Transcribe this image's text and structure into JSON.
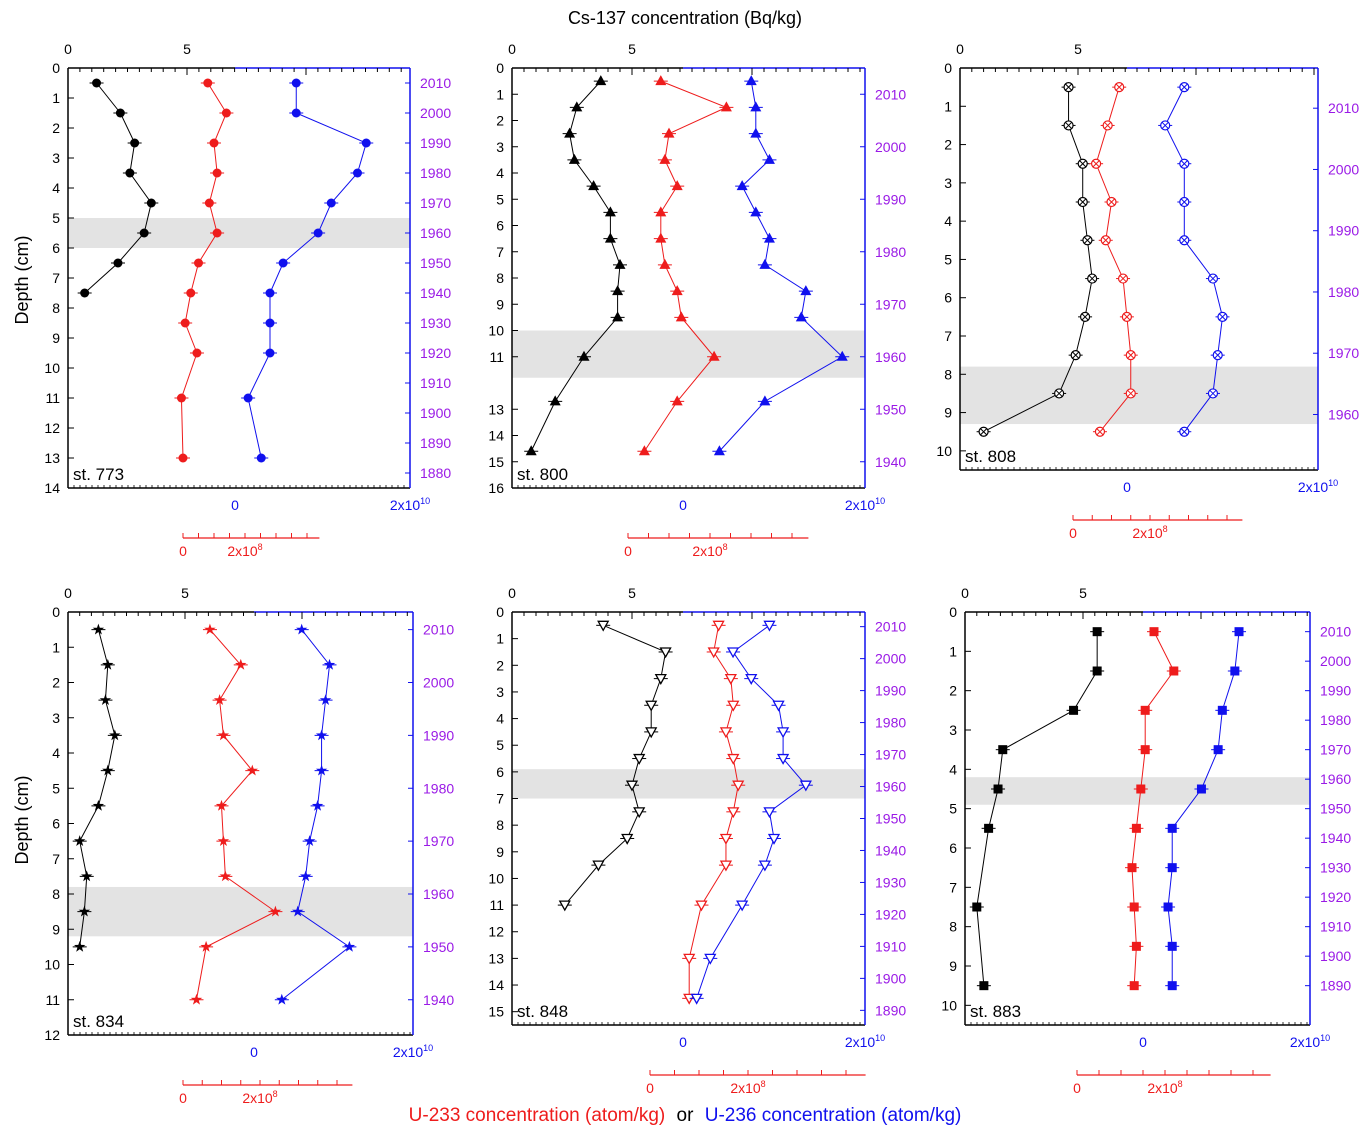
{
  "labels": {
    "cs_axis_title": "Cs-137 concentration (Bq/kg)",
    "depth_axis_title": "Depth (cm)",
    "u233_axis_title": "U-233 concentration (atom/kg)",
    "or_word": "or",
    "u236_axis_title": "U-236 concentration (atom/kg)",
    "u236_tick_high": "2x10",
    "u236_tick_high_exp": "10",
    "u233_tick_mid": "2x10",
    "u233_tick_mid_exp": "8"
  },
  "colors": {
    "cs": "#000000",
    "u233": "#ee1c1c",
    "u236": "#1010ee",
    "year": "#9a1ae6",
    "band": "#e3e3e3"
  },
  "chart_data": [
    {
      "type": "scatter",
      "station": "st. 773",
      "marker": "circle",
      "depth_range": [
        0,
        14
      ],
      "depth_ticks": [
        0,
        1,
        2,
        3,
        4,
        5,
        6,
        7,
        8,
        9,
        10,
        11,
        12,
        13,
        14
      ],
      "shaded_band": [
        5,
        6
      ],
      "cs_range": [
        0,
        15
      ],
      "years": [
        2010,
        2000,
        1990,
        1980,
        1970,
        1960,
        1950,
        1940,
        1930,
        1920,
        1910,
        1900,
        1890,
        1880
      ],
      "year_first_depth": 0.5,
      "year_step_depth": 1,
      "cs": {
        "depth": [
          0.5,
          1.5,
          2.5,
          3.5,
          4.5,
          5.5,
          6.5,
          7.5
        ],
        "values": [
          1.2,
          2.2,
          2.8,
          2.6,
          3.5,
          3.2,
          2.1,
          0.7
        ]
      },
      "u233": {
        "depth": [
          0.5,
          1.5,
          2.5,
          3.5,
          4.5,
          5.5,
          6.5,
          7.5,
          8.5,
          9.5,
          11,
          13
        ],
        "values": [
          80000000.0,
          140000000.0,
          100000000.0,
          110000000.0,
          85000000.0,
          110000000.0,
          50000000.0,
          25000000.0,
          7000000.0,
          45000000.0,
          -5000000.0,
          0.0
        ]
      },
      "u236": {
        "depth": [
          0.5,
          1.5,
          2.5,
          3.5,
          4.5,
          5.5,
          6.5,
          7.5,
          8.5,
          9.5,
          11,
          13
        ],
        "values": [
          7000000000.0,
          7000000000.0,
          15000000000.0,
          14000000000.0,
          11000000000.0,
          9500000000.0,
          5500000000.0,
          4000000000.0,
          4000000000.0,
          4000000000.0,
          1500000000.0,
          3000000000.0
        ]
      }
    },
    {
      "type": "scatter",
      "station": "st. 800",
      "marker": "triangle-up",
      "depth_range": [
        0,
        16
      ],
      "depth_ticks": [
        0,
        1,
        2,
        3,
        4,
        5,
        6,
        7,
        8,
        9,
        10,
        11,
        13,
        14,
        15,
        16
      ],
      "shaded_band": [
        10,
        11.8
      ],
      "cs_range": [
        0,
        15
      ],
      "years": [
        2010,
        2000,
        1990,
        1980,
        1970,
        1960,
        1950,
        1940
      ],
      "year_first_depth": 1,
      "year_step_depth": 2,
      "cs": {
        "depth": [
          0.5,
          1.5,
          2.5,
          3.5,
          4.5,
          5.5,
          6.5,
          7.5,
          8.5,
          9.5,
          11,
          12.7,
          14.6
        ],
        "values": [
          3.7,
          2.7,
          2.4,
          2.6,
          3.4,
          4.1,
          4.1,
          4.5,
          4.4,
          4.4,
          3.0,
          1.8,
          0.8
        ]
      },
      "u233": {
        "depth": [
          0.5,
          1.5,
          2.5,
          3.5,
          4.5,
          5.5,
          6.5,
          7.5,
          8.5,
          9.5,
          11,
          12.7,
          14.6
        ],
        "values": [
          80000000.0,
          240000000.0,
          100000000.0,
          90000000.0,
          120000000.0,
          80000000.0,
          80000000.0,
          90000000.0,
          120000000.0,
          130000000.0,
          210000000.0,
          120000000.0,
          40000000.0
        ]
      },
      "u236": {
        "depth": [
          0.5,
          1.5,
          2.5,
          3.5,
          4.5,
          5.5,
          6.5,
          7.5,
          8.5,
          9.5,
          11,
          12.7,
          14.6
        ],
        "values": [
          7500000000.0,
          8000000000.0,
          8000000000.0,
          9500000000.0,
          6500000000.0,
          8000000000.0,
          9500000000.0,
          9000000000.0,
          13500000000.0,
          13000000000.0,
          17500000000.0,
          9000000000.0,
          4000000000.0
        ]
      }
    },
    {
      "type": "scatter",
      "station": "st. 808",
      "marker": "circle-cross",
      "depth_range": [
        0,
        10.5
      ],
      "depth_ticks": [
        0,
        1,
        2,
        3,
        4,
        5,
        6,
        7,
        8,
        9,
        10
      ],
      "shaded_band": [
        7.8,
        9.3
      ],
      "cs_range": [
        0,
        15
      ],
      "years": [
        2010,
        2000,
        1990,
        1980,
        1970,
        1960,
        1950
      ],
      "year_first_depth": 1.05,
      "year_step_depth": 1.6,
      "cs": {
        "depth": [
          0.5,
          1.5,
          2.5,
          3.5,
          4.5,
          5.5,
          6.5,
          7.5,
          8.5,
          9.5
        ],
        "values": [
          4.6,
          4.6,
          5.2,
          5.2,
          5.4,
          5.6,
          5.3,
          4.9,
          4.2,
          1.0
        ]
      },
      "u233": {
        "depth": [
          0.5,
          1.5,
          2.5,
          3.5,
          4.5,
          5.5,
          6.5,
          7.5,
          8.5,
          9.5
        ],
        "values": [
          120000000.0,
          90000000.0,
          60000000.0,
          100000000.0,
          85000000.0,
          130000000.0,
          140000000.0,
          150000000.0,
          150000000.0,
          70000000.0
        ]
      },
      "u236": {
        "depth": [
          0.5,
          1.5,
          2.5,
          3.5,
          4.5,
          5.5,
          6.5,
          7.5,
          8.5,
          9.5
        ],
        "values": [
          6000000000.0,
          4000000000.0,
          6000000000.0,
          6000000000.0,
          6000000000.0,
          9000000000.0,
          10000000000.0,
          9500000000.0,
          9000000000.0,
          6000000000.0
        ]
      }
    },
    {
      "type": "scatter",
      "station": "st. 834",
      "marker": "star",
      "depth_range": [
        0,
        12
      ],
      "depth_ticks": [
        0,
        1,
        2,
        3,
        4,
        5,
        6,
        7,
        8,
        9,
        10,
        11,
        12
      ],
      "shaded_band": [
        7.8,
        9.2
      ],
      "cs_range": [
        0,
        15
      ],
      "years": [
        2010,
        2000,
        1990,
        1980,
        1970,
        1960,
        1950,
        1940
      ],
      "year_first_depth": 0.5,
      "year_step_depth": 1.5,
      "cs": {
        "depth": [
          0.5,
          1.5,
          2.5,
          3.5,
          4.5,
          5.5,
          6.5,
          7.5,
          8.5,
          9.5
        ],
        "values": [
          1.3,
          1.7,
          1.6,
          2.0,
          1.7,
          1.3,
          0.5,
          0.8,
          0.7,
          0.5
        ]
      },
      "u233": {
        "depth": [
          0.5,
          1.5,
          2.5,
          3.5,
          4.5,
          5.5,
          6.5,
          7.5,
          8.5,
          9.5,
          11
        ],
        "values": [
          70000000.0,
          150000000.0,
          95000000.0,
          105000000.0,
          180000000.0,
          100000000.0,
          105000000.0,
          110000000.0,
          240000000.0,
          60000000.0,
          35000000.0
        ]
      },
      "u236": {
        "depth": [
          0.5,
          1.5,
          2.5,
          3.5,
          4.5,
          5.5,
          6.5,
          7.5,
          8.5,
          9.5,
          11
        ],
        "values": [
          6000000000.0,
          9500000000.0,
          9000000000.0,
          8500000000.0,
          8500000000.0,
          8000000000.0,
          7000000000.0,
          6500000000.0,
          5500000000.0,
          12000000000.0,
          3500000000.0
        ]
      }
    },
    {
      "type": "scatter",
      "station": "st. 848",
      "marker": "triangle-down",
      "depth_range": [
        0,
        15.5
      ],
      "depth_ticks": [
        0,
        1,
        2,
        3,
        4,
        5,
        6,
        7,
        8,
        9,
        10,
        11,
        12,
        13,
        14,
        15
      ],
      "shaded_band": [
        5.9,
        7.0
      ],
      "cs_range": [
        0,
        15
      ],
      "years": [
        2010,
        2000,
        1990,
        1980,
        1970,
        1960,
        1950,
        1940,
        1930,
        1920,
        1910,
        1900,
        1890
      ],
      "year_first_depth": 0.55,
      "year_step_depth": 1.2,
      "cs": {
        "depth": [
          0.5,
          1.5,
          2.5,
          3.5,
          4.5,
          5.5,
          6.5,
          7.5,
          8.5,
          9.5,
          11
        ],
        "values": [
          3.8,
          6.4,
          6.2,
          5.8,
          5.8,
          5.3,
          5.0,
          5.3,
          4.8,
          3.6,
          2.2
        ]
      },
      "u233": {
        "depth": [
          0.5,
          1.5,
          2.5,
          3.5,
          4.5,
          5.5,
          6.5,
          7.5,
          8.5,
          9.5,
          11,
          13,
          14.5
        ],
        "values": [
          140000000.0,
          130000000.0,
          165000000.0,
          170000000.0,
          155000000.0,
          170000000.0,
          180000000.0,
          170000000.0,
          155000000.0,
          155000000.0,
          105000000.0,
          80000000.0,
          80000000.0
        ]
      },
      "u236": {
        "depth": [
          0.5,
          1.5,
          2.5,
          3.5,
          4.5,
          5.5,
          6.5,
          7.5,
          8.5,
          9.5,
          11,
          13,
          14.5
        ],
        "values": [
          9500000000.0,
          5500000000.0,
          7500000000.0,
          10500000000.0,
          11000000000.0,
          11000000000.0,
          13500000000.0,
          9500000000.0,
          10000000000.0,
          9000000000.0,
          6500000000.0,
          3000000000.0,
          1500000000.0
        ]
      }
    },
    {
      "type": "scatter",
      "station": "st. 883",
      "marker": "square",
      "depth_range": [
        0,
        10.5
      ],
      "depth_ticks": [
        0,
        1,
        2,
        3,
        4,
        5,
        6,
        7,
        8,
        9,
        10
      ],
      "shaded_band": [
        4.2,
        4.9
      ],
      "cs_range": [
        0,
        15
      ],
      "years": [
        2010,
        2000,
        1990,
        1980,
        1970,
        1960,
        1950,
        1940,
        1930,
        1920,
        1910,
        1900,
        1890
      ],
      "year_first_depth": 0.5,
      "year_step_depth": 0.75,
      "cs": {
        "depth": [
          0.5,
          1.5,
          2.5,
          3.5,
          4.5,
          5.5,
          7.5,
          9.5
        ],
        "values": [
          5.6,
          5.6,
          4.6,
          1.6,
          1.4,
          1.0,
          0.5,
          0.8
        ]
      },
      "u233": {
        "depth": [
          0.5,
          1.5,
          2.5,
          3.5,
          4.5,
          5.5,
          6.5,
          7.5,
          8.5,
          9.5
        ],
        "values": [
          175000000.0,
          220000000.0,
          155000000.0,
          155000000.0,
          145000000.0,
          135000000.0,
          125000000.0,
          130000000.0,
          135000000.0,
          130000000.0
        ]
      },
      "u236": {
        "depth": [
          0.5,
          1.5,
          2.5,
          3.5,
          4.5,
          5.5,
          6.5,
          7.5,
          8.5,
          9.5
        ],
        "values": [
          11500000000.0,
          11000000000.0,
          9500000000.0,
          9000000000.0,
          7000000000.0,
          3500000000.0,
          3500000000.0,
          3000000000.0,
          3500000000.0,
          3500000000.0
        ]
      }
    }
  ]
}
